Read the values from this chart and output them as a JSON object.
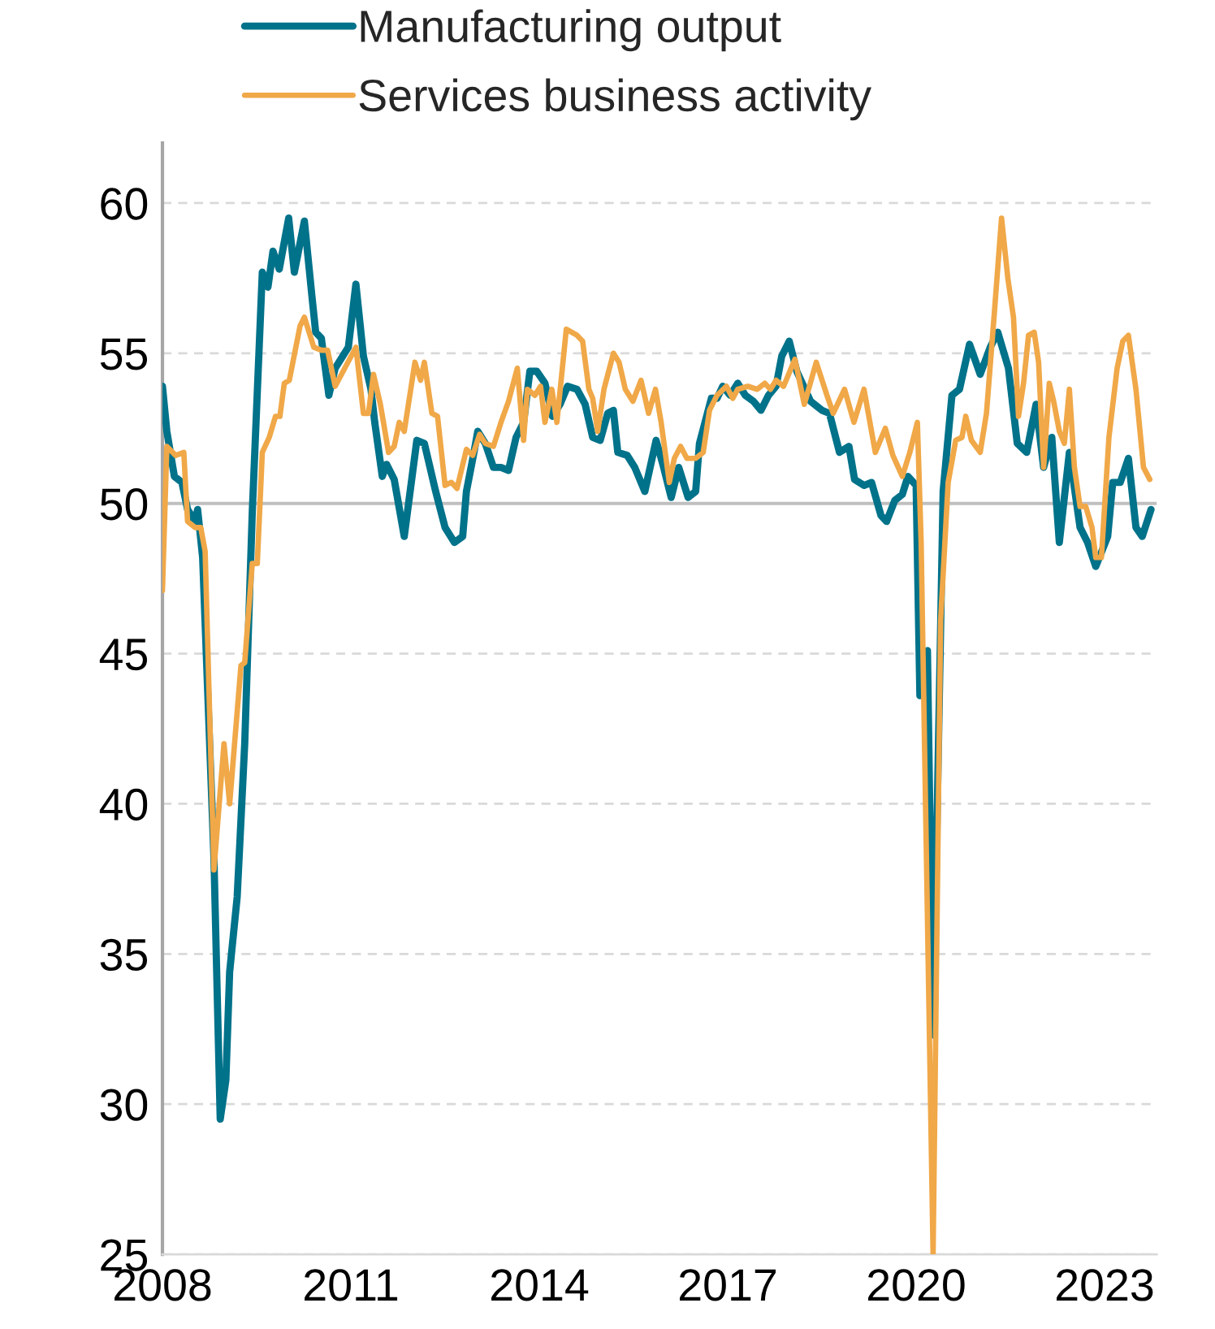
{
  "chart_data": {
    "type": "line",
    "xlim": [
      2008,
      2023.83
    ],
    "xticks": [
      2008,
      2011,
      2014,
      2017,
      2020,
      2023
    ],
    "ylim": [
      25,
      62
    ],
    "yticks": [
      25,
      30,
      35,
      40,
      45,
      50,
      55,
      60
    ],
    "grid": "y",
    "legend": "top",
    "marker": "none",
    "line_style": "solid",
    "ref_lines": [
      {
        "axis": "y",
        "value": 50,
        "label": null,
        "color": "#bfbfbf"
      }
    ],
    "series": [
      {
        "name": "Manufacturing output",
        "color": "#00728a",
        "x": [
          2008.0,
          2008.07,
          2008.19,
          2008.31,
          2008.4,
          2008.52,
          2008.56,
          2008.64,
          2008.82,
          2008.92,
          2009.01,
          2009.07,
          2009.19,
          2009.31,
          2009.43,
          2009.59,
          2009.68,
          2009.76,
          2009.86,
          2010.01,
          2010.1,
          2010.26,
          2010.38,
          2010.44,
          2010.53,
          2010.65,
          2010.75,
          2010.96,
          2011.08,
          2011.2,
          2011.32,
          2011.38,
          2011.5,
          2011.57,
          2011.69,
          2011.85,
          2012.05,
          2012.17,
          2012.35,
          2012.5,
          2012.65,
          2012.78,
          2012.84,
          2012.96,
          2013.02,
          2013.14,
          2013.27,
          2013.39,
          2013.51,
          2013.63,
          2013.75,
          2013.85,
          2013.96,
          2014.09,
          2014.21,
          2014.33,
          2014.45,
          2014.6,
          2014.73,
          2014.85,
          2014.97,
          2015.09,
          2015.18,
          2015.25,
          2015.4,
          2015.52,
          2015.68,
          2015.86,
          2015.98,
          2016.1,
          2016.22,
          2016.37,
          2016.49,
          2016.55,
          2016.74,
          2016.83,
          2016.92,
          2017.04,
          2017.16,
          2017.28,
          2017.41,
          2017.53,
          2017.65,
          2017.77,
          2017.86,
          2017.98,
          2018.1,
          2018.32,
          2018.5,
          2018.62,
          2018.78,
          2018.93,
          2019.02,
          2019.17,
          2019.29,
          2019.44,
          2019.53,
          2019.66,
          2019.78,
          2019.87,
          2020.0,
          2020.06,
          2020.18,
          2020.27,
          2020.43,
          2020.57,
          2020.69,
          2020.85,
          2021.02,
          2021.18,
          2021.3,
          2021.47,
          2021.61,
          2021.76,
          2021.91,
          2022.03,
          2022.16,
          2022.28,
          2022.44,
          2022.61,
          2022.73,
          2022.86,
          2023.05,
          2023.13,
          2023.25,
          2023.38,
          2023.5,
          2023.6,
          2023.74
        ],
        "values": [
          53.9,
          52.4,
          50.9,
          50.7,
          49.8,
          49.4,
          49.8,
          48.2,
          38.2,
          29.5,
          30.8,
          34.4,
          36.9,
          42.0,
          49.7,
          57.7,
          57.2,
          58.4,
          57.8,
          59.5,
          57.7,
          59.4,
          56.9,
          55.7,
          55.5,
          53.6,
          54.5,
          55.2,
          57.3,
          54.9,
          53.8,
          52.7,
          50.9,
          51.3,
          50.8,
          48.9,
          52.1,
          52.0,
          50.4,
          49.2,
          48.7,
          48.9,
          50.4,
          51.7,
          52.4,
          52.0,
          51.2,
          51.2,
          51.1,
          52.2,
          52.7,
          54.4,
          54.4,
          54.0,
          52.9,
          53.3,
          53.9,
          53.8,
          53.3,
          52.2,
          52.1,
          53.0,
          53.1,
          51.7,
          51.6,
          51.2,
          50.4,
          52.1,
          51.2,
          50.2,
          51.2,
          50.2,
          50.4,
          52.0,
          53.5,
          53.5,
          53.9,
          53.6,
          54.0,
          53.6,
          53.4,
          53.1,
          53.6,
          53.9,
          54.9,
          55.4,
          54.4,
          53.4,
          53.1,
          53.0,
          51.7,
          51.9,
          50.8,
          50.6,
          50.7,
          49.6,
          49.4,
          50.1,
          50.3,
          50.9,
          50.6,
          43.6,
          45.1,
          32.3,
          50.4,
          53.6,
          53.8,
          55.3,
          54.3,
          55.2,
          55.7,
          54.5,
          52.0,
          51.7,
          53.3,
          51.2,
          52.2,
          48.7,
          51.7,
          49.2,
          48.7,
          47.9,
          48.9,
          50.7,
          50.7,
          51.5,
          49.2,
          48.9,
          49.8
        ]
      },
      {
        "name": "Services business activity",
        "color": "#f0a848",
        "x": [
          2008.0,
          2008.07,
          2008.21,
          2008.34,
          2008.4,
          2008.52,
          2008.61,
          2008.68,
          2008.82,
          2008.98,
          2009.07,
          2009.25,
          2009.31,
          2009.43,
          2009.51,
          2009.59,
          2009.7,
          2009.8,
          2009.87,
          2009.94,
          2010.02,
          2010.19,
          2010.26,
          2010.41,
          2010.53,
          2010.63,
          2010.75,
          2011.08,
          2011.2,
          2011.28,
          2011.36,
          2011.47,
          2011.6,
          2011.69,
          2011.77,
          2011.85,
          2012.02,
          2012.11,
          2012.17,
          2012.29,
          2012.38,
          2012.5,
          2012.6,
          2012.69,
          2012.84,
          2012.94,
          2013.05,
          2013.14,
          2013.27,
          2013.39,
          2013.51,
          2013.65,
          2013.75,
          2013.81,
          2013.93,
          2014.02,
          2014.09,
          2014.2,
          2014.28,
          2014.43,
          2014.6,
          2014.69,
          2014.79,
          2014.85,
          2014.93,
          2015.03,
          2015.18,
          2015.27,
          2015.37,
          2015.49,
          2015.62,
          2015.74,
          2015.85,
          2015.94,
          2016.07,
          2016.15,
          2016.25,
          2016.35,
          2016.49,
          2016.61,
          2016.71,
          2016.83,
          2016.98,
          2017.08,
          2017.16,
          2017.32,
          2017.47,
          2017.59,
          2017.68,
          2017.77,
          2017.89,
          2018.07,
          2018.22,
          2018.41,
          2018.58,
          2018.68,
          2018.86,
          2019.01,
          2019.17,
          2019.35,
          2019.51,
          2019.63,
          2019.78,
          2019.9,
          2020.02,
          2020.08,
          2020.27,
          2020.39,
          2020.51,
          2020.63,
          2020.73,
          2020.79,
          2020.88,
          2021.02,
          2021.12,
          2021.24,
          2021.36,
          2021.46,
          2021.55,
          2021.63,
          2021.71,
          2021.79,
          2021.88,
          2021.95,
          2022.03,
          2022.12,
          2022.19,
          2022.28,
          2022.36,
          2022.44,
          2022.52,
          2022.61,
          2022.7,
          2022.8,
          2022.86,
          2022.95,
          2023.07,
          2023.2,
          2023.29,
          2023.38,
          2023.5,
          2023.62,
          2023.72
        ],
        "values": [
          47.1,
          51.9,
          51.6,
          51.7,
          49.4,
          49.2,
          49.2,
          48.4,
          37.8,
          42.0,
          40.0,
          44.6,
          44.7,
          48.0,
          48.0,
          51.7,
          52.2,
          52.9,
          52.9,
          54.0,
          54.1,
          55.9,
          56.2,
          55.2,
          55.1,
          55.1,
          53.9,
          55.2,
          53.0,
          53.0,
          54.3,
          53.3,
          51.7,
          51.9,
          52.7,
          52.4,
          54.7,
          54.1,
          54.7,
          53.0,
          52.9,
          50.6,
          50.7,
          50.5,
          51.8,
          51.6,
          52.3,
          52.0,
          51.9,
          52.7,
          53.4,
          54.5,
          52.1,
          53.8,
          53.6,
          53.9,
          52.7,
          53.8,
          52.7,
          55.8,
          55.6,
          55.4,
          53.8,
          53.5,
          52.4,
          53.8,
          55.0,
          54.7,
          53.8,
          53.4,
          54.1,
          53.0,
          53.8,
          52.7,
          50.7,
          51.5,
          51.9,
          51.5,
          51.5,
          51.7,
          53.1,
          53.6,
          53.9,
          53.5,
          53.8,
          53.9,
          53.8,
          54.0,
          53.8,
          54.1,
          53.9,
          54.8,
          53.3,
          54.7,
          53.6,
          53.0,
          53.8,
          52.7,
          53.8,
          51.7,
          52.5,
          51.6,
          50.9,
          51.7,
          52.7,
          48.7,
          25.0,
          46.1,
          50.7,
          52.1,
          52.2,
          52.9,
          52.1,
          51.7,
          53.0,
          56.2,
          59.5,
          57.5,
          56.2,
          52.9,
          54.0,
          55.6,
          55.7,
          54.7,
          51.2,
          54.0,
          53.4,
          52.4,
          52.0,
          53.8,
          51.2,
          49.9,
          49.9,
          49.2,
          48.2,
          48.2,
          52.2,
          54.5,
          55.4,
          55.6,
          53.8,
          51.2,
          50.8
        ]
      }
    ]
  }
}
